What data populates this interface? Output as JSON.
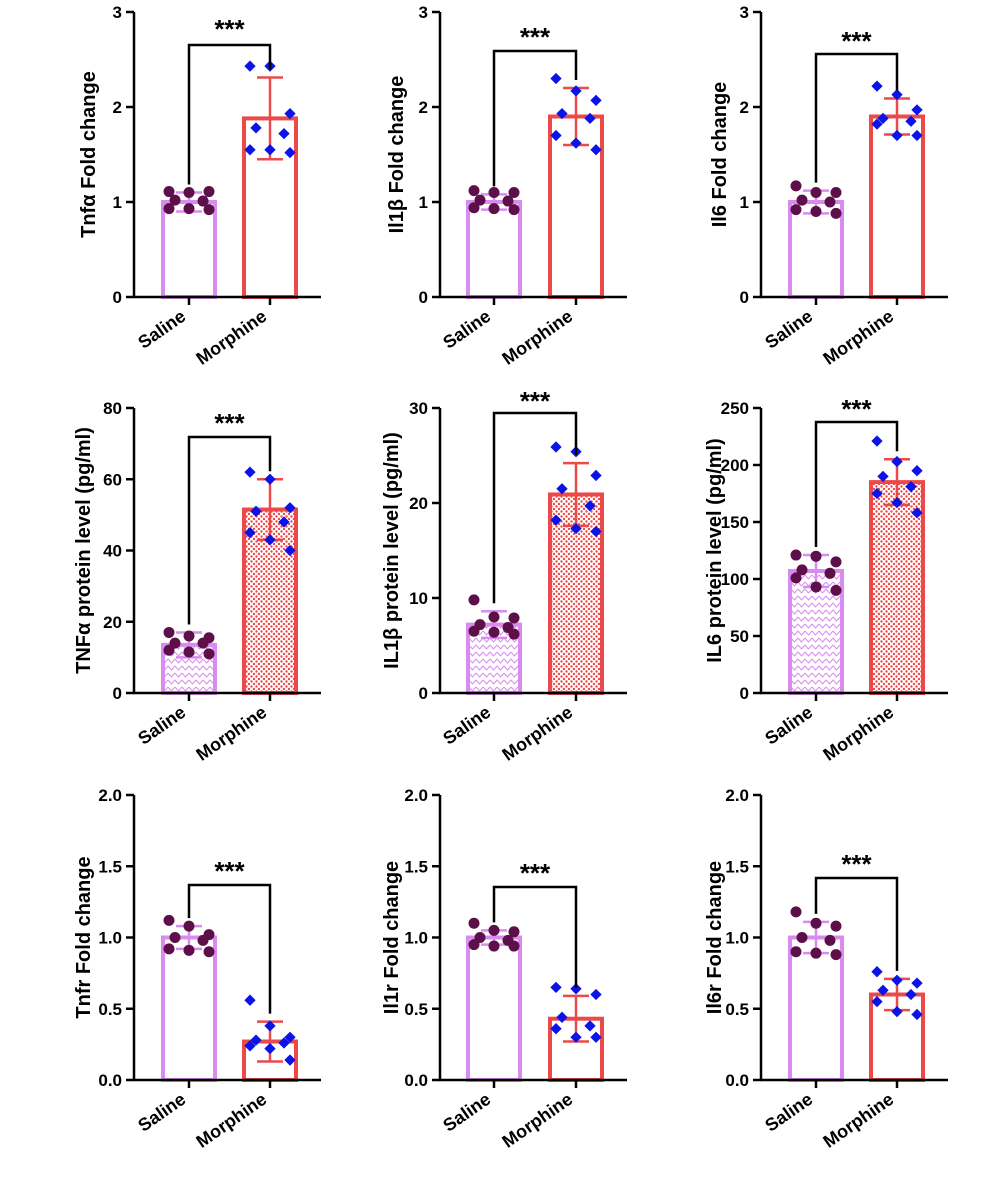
{
  "colors": {
    "saline": "#da8bf0",
    "morphine": "#ec4a4a",
    "saline_points": "#5c0f48",
    "morphine_points": "#0b14e6",
    "axis": "#000000"
  },
  "chart_data": [
    {
      "type": "bar",
      "ylabel": "Tnfα Fold change",
      "categories": [
        "Saline",
        "Morphine"
      ],
      "yticks": [
        "0",
        "1",
        "2",
        "3"
      ],
      "ylim": [
        0,
        3
      ],
      "values": [
        1.0,
        1.88
      ],
      "errors": [
        0.1,
        0.43
      ],
      "fill": "solid",
      "significance": "***",
      "points": [
        [
          1.11,
          1.1,
          1.11,
          1.02,
          1.01,
          0.93,
          0.93,
          0.92
        ],
        [
          2.43,
          2.43,
          1.93,
          1.78,
          1.72,
          1.55,
          1.55,
          1.52
        ]
      ]
    },
    {
      "type": "bar",
      "ylabel": "Il1β Fold change",
      "categories": [
        "Saline",
        "Morphine"
      ],
      "yticks": [
        "0",
        "1",
        "2",
        "3"
      ],
      "ylim": [
        0,
        3
      ],
      "values": [
        1.0,
        1.9
      ],
      "errors": [
        0.08,
        0.3
      ],
      "fill": "solid",
      "significance": "***",
      "points": [
        [
          1.12,
          1.1,
          1.1,
          1.02,
          1.01,
          0.94,
          0.93,
          0.92
        ],
        [
          2.3,
          2.17,
          2.07,
          1.93,
          1.88,
          1.7,
          1.62,
          1.55
        ]
      ]
    },
    {
      "type": "bar",
      "ylabel": "Il6 Fold change",
      "categories": [
        "Saline",
        "Morphine"
      ],
      "yticks": [
        "0",
        "1",
        "2",
        "3"
      ],
      "ylim": [
        0,
        3
      ],
      "values": [
        1.0,
        1.9
      ],
      "errors": [
        0.12,
        0.19
      ],
      "fill": "solid",
      "significance": "***",
      "points": [
        [
          1.17,
          1.1,
          1.1,
          1.02,
          1.0,
          0.92,
          0.9,
          0.88
        ],
        [
          2.22,
          2.13,
          1.97,
          1.88,
          1.85,
          1.82,
          1.7,
          1.7
        ]
      ]
    },
    {
      "type": "bar",
      "ylabel": "TNFα protein level (pg/ml)",
      "categories": [
        "Saline",
        "Morphine"
      ],
      "yticks": [
        "0",
        "20",
        "40",
        "60",
        "80"
      ],
      "ylim": [
        0,
        80
      ],
      "values": [
        13.5,
        51.5
      ],
      "errors": [
        3.5,
        8.5
      ],
      "fill": "pattern",
      "significance": "***",
      "points": [
        [
          17,
          16,
          15.5,
          14,
          14,
          12,
          11.5,
          11
        ],
        [
          62,
          60,
          52,
          51,
          48,
          45,
          43,
          40
        ]
      ]
    },
    {
      "type": "bar",
      "ylabel": "IL1β protein level (pg/ml)",
      "categories": [
        "Saline",
        "Morphine"
      ],
      "yticks": [
        "0",
        "10",
        "20",
        "30"
      ],
      "ylim": [
        0,
        30
      ],
      "values": [
        7.2,
        20.9
      ],
      "errors": [
        1.4,
        3.3
      ],
      "fill": "pattern",
      "significance": "***",
      "points": [
        [
          9.8,
          8.0,
          7.9,
          7.2,
          6.9,
          6.5,
          6.4,
          6.2
        ],
        [
          25.9,
          25.4,
          22.9,
          21.5,
          19.7,
          18.2,
          17.3,
          17.0
        ]
      ]
    },
    {
      "type": "bar",
      "ylabel": "IL6 protein level (pg/ml)",
      "categories": [
        "Saline",
        "Morphine"
      ],
      "yticks": [
        "0",
        "50",
        "100",
        "150",
        "200",
        "250"
      ],
      "ylim": [
        0,
        250
      ],
      "values": [
        107,
        185
      ],
      "errors": [
        14,
        20
      ],
      "fill": "pattern",
      "significance": "***",
      "points": [
        [
          121,
          120,
          115,
          108,
          105,
          101,
          93,
          90
        ],
        [
          221,
          203,
          195,
          190,
          181,
          175,
          167,
          158
        ]
      ]
    },
    {
      "type": "bar",
      "ylabel": "Tnfr Fold change",
      "categories": [
        "Saline",
        "Morphine"
      ],
      "yticks": [
        "0.0",
        "0.5",
        "1.0",
        "1.5",
        "2.0"
      ],
      "ylim": [
        0,
        2
      ],
      "values": [
        1.0,
        0.27
      ],
      "errors": [
        0.08,
        0.14
      ],
      "fill": "solid",
      "significance": "***",
      "points": [
        [
          1.12,
          1.08,
          1.02,
          1.0,
          0.98,
          0.92,
          0.91,
          0.9
        ],
        [
          0.56,
          0.38,
          0.3,
          0.28,
          0.26,
          0.24,
          0.22,
          0.14
        ]
      ]
    },
    {
      "type": "bar",
      "ylabel": "Il1r Fold change",
      "categories": [
        "Saline",
        "Morphine"
      ],
      "yticks": [
        "0.0",
        "0.5",
        "1.0",
        "1.5",
        "2.0"
      ],
      "ylim": [
        0,
        2
      ],
      "values": [
        1.0,
        0.43
      ],
      "errors": [
        0.05,
        0.16
      ],
      "fill": "solid",
      "significance": "***",
      "points": [
        [
          1.1,
          1.05,
          1.04,
          1.0,
          0.98,
          0.95,
          0.94,
          0.94
        ],
        [
          0.65,
          0.64,
          0.6,
          0.44,
          0.38,
          0.36,
          0.3,
          0.3
        ]
      ]
    },
    {
      "type": "bar",
      "ylabel": "Il6r Fold change",
      "categories": [
        "Saline",
        "Morphine"
      ],
      "yticks": [
        "0.0",
        "0.5",
        "1.0",
        "1.5",
        "2.0"
      ],
      "ylim": [
        0,
        2
      ],
      "values": [
        1.0,
        0.6
      ],
      "errors": [
        0.11,
        0.11
      ],
      "fill": "solid",
      "significance": "***",
      "points": [
        [
          1.18,
          1.1,
          1.08,
          1.0,
          0.98,
          0.9,
          0.89,
          0.88
        ],
        [
          0.76,
          0.7,
          0.68,
          0.63,
          0.6,
          0.55,
          0.48,
          0.46
        ]
      ]
    }
  ]
}
